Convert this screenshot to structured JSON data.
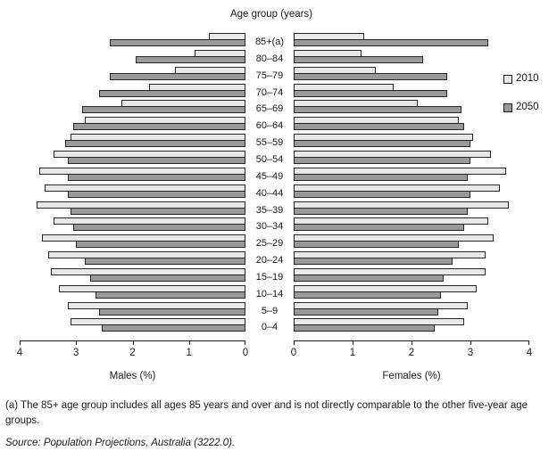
{
  "title": "Age group (years)",
  "legend": {
    "items": [
      {
        "label": "2010",
        "color": "#e8e8e8"
      },
      {
        "label": "2050",
        "color": "#999999"
      }
    ]
  },
  "axes": {
    "males": {
      "label": "Males (%)",
      "ticks": [
        "4",
        "3",
        "2",
        "1",
        "0"
      ],
      "max": 4
    },
    "females": {
      "label": "Females (%)",
      "ticks": [
        "0",
        "1",
        "2",
        "3",
        "4"
      ],
      "max": 4
    }
  },
  "footnote": "(a) The 85+ age group includes all ages 85 years and over and is not directly comparable to the other five-year age groups.",
  "source": "Source: Population Projections, Australia (3222.0).",
  "colors": {
    "bar_2010_fill": "#e8e8e8",
    "bar_2050_fill": "#999999",
    "bar_border": "#262626",
    "axis": "#1a1a1a",
    "text": "#1a1a1a"
  },
  "chart_data": {
    "type": "bar",
    "variant": "population_pyramid",
    "title": "Age group (years)",
    "categories": [
      "85+(a)",
      "80–84",
      "75–79",
      "70–74",
      "65–69",
      "60–64",
      "55–59",
      "50–54",
      "45–49",
      "40–44",
      "35–39",
      "30–34",
      "25–29",
      "20–24",
      "15–19",
      "10–14",
      "5–9",
      "0–4"
    ],
    "series": [
      {
        "name": "2010",
        "side": "males",
        "values": [
          0.65,
          0.9,
          1.25,
          1.7,
          2.2,
          2.85,
          3.1,
          3.4,
          3.65,
          3.55,
          3.7,
          3.4,
          3.6,
          3.5,
          3.45,
          3.3,
          3.15,
          3.1
        ]
      },
      {
        "name": "2050",
        "side": "males",
        "values": [
          2.4,
          1.95,
          2.4,
          2.6,
          2.9,
          3.05,
          3.2,
          3.15,
          3.15,
          3.15,
          3.1,
          3.05,
          3.0,
          2.85,
          2.75,
          2.65,
          2.6,
          2.55
        ]
      },
      {
        "name": "2010",
        "side": "females",
        "values": [
          1.2,
          1.15,
          1.4,
          1.7,
          2.1,
          2.8,
          3.05,
          3.35,
          3.6,
          3.5,
          3.65,
          3.3,
          3.4,
          3.25,
          3.25,
          3.1,
          2.95,
          2.9
        ]
      },
      {
        "name": "2050",
        "side": "females",
        "values": [
          3.3,
          2.2,
          2.6,
          2.6,
          2.85,
          2.9,
          3.0,
          3.0,
          2.95,
          3.0,
          2.95,
          2.9,
          2.8,
          2.7,
          2.55,
          2.5,
          2.45,
          2.4
        ]
      }
    ],
    "xlabel_males": "Males (%)",
    "xlabel_females": "Females (%)",
    "xlim": [
      0,
      4
    ],
    "tick_interval": 1,
    "grid": false,
    "legend_position": "right"
  }
}
